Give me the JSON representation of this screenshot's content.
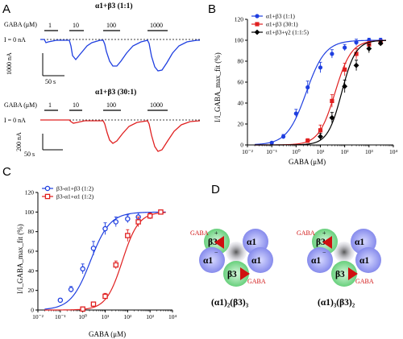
{
  "panel_letters": {
    "a": "A",
    "b": "B",
    "c": "C",
    "d": "D"
  },
  "panel_a": {
    "colors": {
      "top": "#1f3fe0",
      "bottom": "#e02020"
    },
    "top": {
      "title": "α1+β3 (1:1)",
      "gaba_label": "GABA (μM)",
      "current_label": "I = 0 nA",
      "conc_labels": [
        "1",
        "10",
        "100",
        "1000"
      ],
      "scale_y": "1000 nA",
      "scale_x": "50 s"
    },
    "bottom": {
      "title": "α1+β3 (30:1)",
      "gaba_label": "GABA (μM)",
      "current_label": "I = 0 nA",
      "conc_labels": [
        "1",
        "10",
        "100",
        "1000"
      ],
      "scale_y": "200 nA",
      "scale_x": "50 s"
    }
  },
  "chart_data": [
    {
      "panel": "B",
      "type": "scatter",
      "xlabel": "GABA (μM)",
      "ylabel": "I/I_GABA_max_fit (%)",
      "xscale": "log",
      "xlim": [
        0.01,
        10000
      ],
      "ylim": [
        0,
        120
      ],
      "x_tick_labels": [
        "10⁻²",
        "10⁻¹",
        "10⁰",
        "10¹",
        "10²",
        "10³",
        "10⁴"
      ],
      "y_tick_labels": [
        "0",
        "20",
        "40",
        "60",
        "80",
        "100",
        "120"
      ],
      "legend_position": "top-left",
      "grid": false,
      "series": [
        {
          "name": "α1+β3 (1:1)",
          "color": "#1f3fe0",
          "marker": "circle",
          "ec50": 2.6,
          "hill": 1.1,
          "x": [
            0.1,
            0.3,
            1,
            3,
            10,
            30,
            100,
            300,
            1000,
            3000
          ],
          "y": [
            2,
            8,
            30,
            55,
            74,
            87,
            93,
            98,
            100,
            100
          ],
          "err": [
            1,
            2,
            4,
            6,
            5,
            4,
            3,
            3,
            2,
            2
          ]
        },
        {
          "name": "α1+β3 (30:1)",
          "color": "#e02020",
          "marker": "square",
          "ec50": 40,
          "hill": 1.3,
          "x": [
            3,
            10,
            30,
            100,
            300,
            1000,
            3000
          ],
          "y": [
            4,
            14,
            42,
            72,
            87,
            96,
            98
          ],
          "err": [
            2,
            5,
            6,
            6,
            5,
            3,
            2
          ]
        },
        {
          "name": "α1+β3+γ2 (1:1:5)",
          "color": "#000000",
          "marker": "diamond",
          "ec50": 75,
          "hill": 1.5,
          "x": [
            10,
            30,
            100,
            300,
            1000,
            3000
          ],
          "y": [
            8,
            26,
            56,
            76,
            92,
            97
          ],
          "err": [
            3,
            5,
            6,
            5,
            4,
            2
          ]
        }
      ]
    },
    {
      "panel": "C",
      "type": "scatter",
      "xlabel": "GABA (μM)",
      "ylabel": "I/I_GABA_max_fit (%)",
      "xscale": "log",
      "xlim": [
        0.01,
        10000
      ],
      "ylim": [
        0,
        120
      ],
      "x_tick_labels": [
        "10⁻²",
        "10⁻¹",
        "10⁰",
        "10¹",
        "10²",
        "10³",
        "10⁴"
      ],
      "y_tick_labels": [
        "0",
        "20",
        "40",
        "60",
        "80",
        "100",
        "120"
      ],
      "legend_position": "top-left",
      "grid": false,
      "series": [
        {
          "name": "β3-α1+β3 (1:2)",
          "color": "#1f3fe0",
          "marker": "open-circle",
          "ec50": 2.2,
          "hill": 1.0,
          "x": [
            0.1,
            0.3,
            1,
            3,
            10,
            30,
            100,
            300,
            1000
          ],
          "y": [
            10,
            21,
            42,
            63,
            83,
            90,
            93,
            95,
            96
          ],
          "err": [
            2,
            3,
            5,
            7,
            6,
            5,
            4,
            4,
            3
          ]
        },
        {
          "name": "β3-α1+α1 (1:2)",
          "color": "#e02020",
          "marker": "open-square",
          "ec50": 58,
          "hill": 1.2,
          "x": [
            1,
            3,
            10,
            30,
            100,
            300,
            1000,
            3000
          ],
          "y": [
            1,
            6,
            14,
            46,
            76,
            90,
            96,
            100
          ],
          "err": [
            1,
            2,
            3,
            4,
            6,
            5,
            3,
            2
          ]
        }
      ]
    }
  ],
  "panel_d": {
    "label_gaba": "GABA",
    "left": {
      "subunits": [
        "β3",
        "β3",
        "α1",
        "α1",
        "β3"
      ],
      "plus": "+",
      "minus": "−",
      "formula": "(α1)₂(β3)₃"
    },
    "right": {
      "subunits": [
        "β3",
        "α1",
        "α1",
        "α1",
        "β3"
      ],
      "plus": "+",
      "minus": "−",
      "formula": "(α1)₃(β3)₂"
    },
    "colors": {
      "alpha": "#8f93f0",
      "beta": "#7fd88f",
      "arrow": "#d01010"
    }
  }
}
